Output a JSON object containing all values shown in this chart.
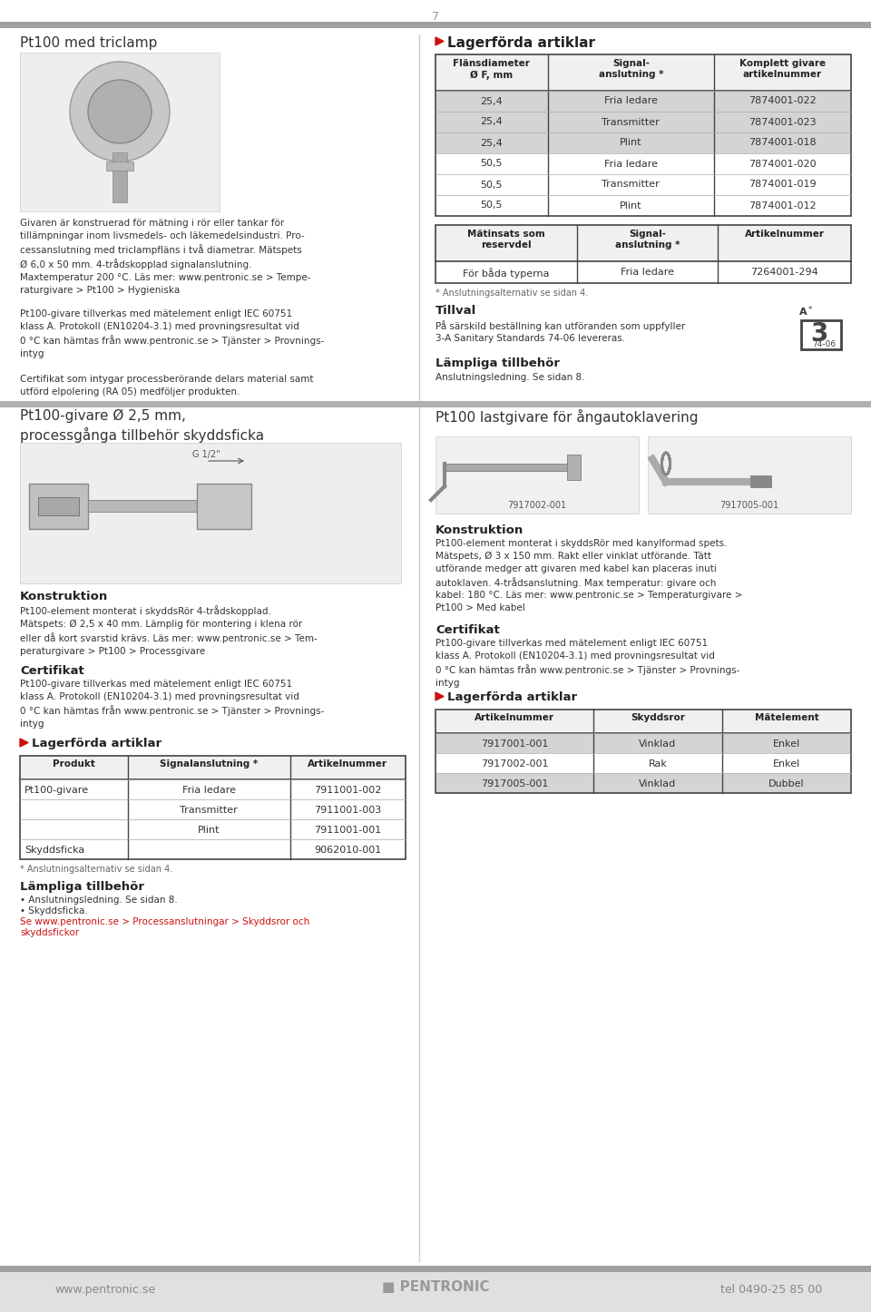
{
  "page_number": "7",
  "top_bar_color": "#9e9e9e",
  "background_color": "#ffffff",
  "footer_bar_color": "#9e9e9e",
  "footer_bg_color": "#e0e0e0",
  "footer_text": "www.pentronic.se",
  "footer_logo_text": "■ PENTRONIC",
  "footer_tel": "tel 0490-25 85 00",
  "section1_title": "Pt100 med triclamp",
  "red_color": "#cc1111",
  "section1_lagerforda": "Lagerförda artiklar",
  "section1_desc": "Givaren är konstruerad för mätning i rör eller tankar för\ntillämpningar inom livsmedels- och läkemedelsindustri. Pro-\ncessanslutning med triclampfläns i två diametrar. Mätspets\nØ 6,0 x 50 mm. 4-trådskopplad signalanslutning.\nMaxtemperatur 200 °C. Läs mer: www.pentronic.se > Tempe-\nraturgivare > Pt100 > Hygieniska",
  "section1_desc2": "Pt100-givare tillverkas med mätelement enligt IEC 60751\nklass A. Protokoll (EN10204-3.1) med provningsresultat vid\n0 °C kan hämtas från www.pentronic.se > Tjänster > Provnings-\nintyg",
  "section1_desc3": "Certifikat som intygar processberörande delars material samt\nutförd elpolering (RA 05) medföljer produkten.",
  "table1_header": [
    "Flänsdiameter\nØ F, mm",
    "Signal-\nanslutning *",
    "Komplett givare\nartikelnummer"
  ],
  "table1_rows": [
    [
      "25,4",
      "Fria ledare",
      "7874001-022"
    ],
    [
      "25,4",
      "Transmitter",
      "7874001-023"
    ],
    [
      "25,4",
      "Plint",
      "7874001-018"
    ],
    [
      "50,5",
      "Fria ledare",
      "7874001-020"
    ],
    [
      "50,5",
      "Transmitter",
      "7874001-019"
    ],
    [
      "50,5",
      "Plint",
      "7874001-012"
    ]
  ],
  "table1_shaded_rows": [
    3,
    4,
    5
  ],
  "table1_shade_color": "#d4d4d4",
  "table2_header": [
    "Mätinsats som\nreservdel",
    "Signal-\nanslutning *",
    "Artikelnummer"
  ],
  "table2_rows": [
    [
      "För båda typerna",
      "Fria ledare",
      "7264001-294"
    ]
  ],
  "table2_note": "* Anslutningsalternativ se sidan 4.",
  "tillval_title": "Tillval",
  "tillval_text": "På särskild beställning kan utföranden som uppfyller\n3-A Sanitary Standards 74-06 levereras.",
  "tillval_badge": "74-06",
  "lampliga_title": "Lämpliga tillbehör",
  "lampliga_text": "Anslutningsledning. Se sidan 8.",
  "section2_title": "Pt100-givare Ø 2,5 mm,\nprocessgånga tillbehör skyddsficka",
  "section2_konstruktion_title": "Konstruktion",
  "section2_konstruktion": "Pt100-element monterat i skyddsRör 4-trådskopplad.\nMätspets: Ø 2,5 x 40 mm. Lämplig för montering i klena rör\neller då kort svarstid krävs. Läs mer: www.pentronic.se > Tem-\nperaturgivare > Pt100 > Processgivare",
  "section2_certifikat_title": "Certifikat",
  "section2_certifikat": "Pt100-givare tillverkas med mätelement enligt IEC 60751\nklass A. Protokoll (EN10204-3.1) med provningsresultat vid\n0 °C kan hämtas från www.pentronic.se > Tjänster > Provnings-\nintyg",
  "section2_lagerforda": "Lagerförda artiklar",
  "table3_header": [
    "Produkt",
    "Signalanslutning *",
    "Artikelnummer"
  ],
  "table3_rows": [
    [
      "Pt100-givare",
      "Fria ledare",
      "7911001-002"
    ],
    [
      "",
      "Transmitter",
      "7911001-003"
    ],
    [
      "",
      "Plint",
      "7911001-001"
    ],
    [
      "Skyddsficka",
      "",
      "9062010-001"
    ]
  ],
  "table3_note": "* Anslutningsalternativ se sidan 4.",
  "section2_lampliga_title": "Lämpliga tillbehör",
  "section2_lampliga_1": "• Anslutningsledning. Se sidan 8.",
  "section2_lampliga_2": "• Skyddsficka.",
  "section2_lampliga_3": "Se www.pentronic.se > Processanslutningar > Skyddsror och",
  "section2_lampliga_4": "skyddsfickor",
  "section3_title": "Pt100 lastgivare för ångautoklavering",
  "section3_img1": "7917002-001",
  "section3_img2": "7917005-001",
  "section3_konstruktion_title": "Konstruktion",
  "section3_konstruktion": "Pt100-element monterat i skyddsRör med kanylformad spets.\nMätspets, Ø 3 x 150 mm. Rakt eller vinklat utförande. Tätt\nutförande medger att givaren med kabel kan placeras inuti\nautoklaven. 4-trådsanslutning. Max temperatur: givare och\nkabel: 180 °C. Läs mer: www.pentronic.se > Temperaturgivare >\nPt100 > Med kabel",
  "section3_certifikat_title": "Certifikat",
  "section3_certifikat": "Pt100-givare tillverkas med mätelement enligt IEC 60751\nklass A. Protokoll (EN10204-3.1) med provningsresultat vid\n0 °C kan hämtas från www.pentronic.se > Tjänster > Provnings-\nintyg",
  "section3_lagerforda": "Lagerförda artiklar",
  "table4_header": [
    "Artikelnummer",
    "Skyddsror",
    "Mätelement"
  ],
  "table4_rows": [
    [
      "7917001-001",
      "Vinklad",
      "Enkel"
    ],
    [
      "7917002-001",
      "Rak",
      "Enkel"
    ],
    [
      "7917005-001",
      "Vinklad",
      "Dubbel"
    ]
  ],
  "table4_shaded_rows": [
    0,
    2
  ],
  "table4_shade_color": "#d4d4d4",
  "table_border_color": "#444444",
  "table_shade_color": "#d4d4d4"
}
